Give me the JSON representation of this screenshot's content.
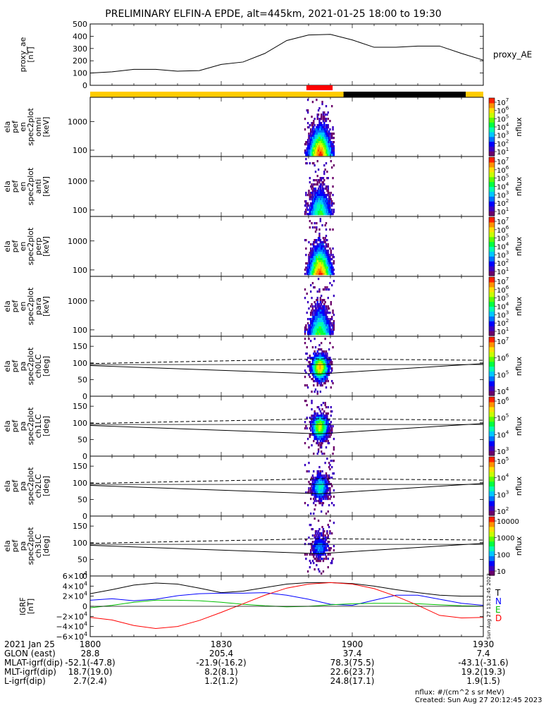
{
  "title": "PRELIMINARY ELFIN-A EPDE, alt=445km, 2021-01-25 18:00 to 19:30",
  "colors": {
    "spec_scale": [
      "#6b006b",
      "#3a00c0",
      "#0000ff",
      "#0070ff",
      "#00c8ff",
      "#00ffb0",
      "#00ff40",
      "#60ff00",
      "#c8ff00",
      "#ffe000",
      "#ff9000",
      "#ff2000"
    ],
    "state_orange": "#ffcc00",
    "state_black": "#000000",
    "marker_red": "#ff0000",
    "igrf_T": "#000000",
    "igrf_N": "#0000ff",
    "igrf_E": "#00c000",
    "igrf_D": "#ff0000"
  },
  "chart_data": [
    {
      "type": "line",
      "panel": "proxy_ae",
      "ylabel": [
        "proxy_ae",
        "[nT]"
      ],
      "right_label": "proxy_AE",
      "ylim": [
        0,
        500
      ],
      "yticks": [
        "500",
        "400",
        "300",
        "200",
        "100",
        "0"
      ],
      "x_minutes": [
        0,
        5,
        10,
        15,
        20,
        25,
        30,
        35,
        40,
        45,
        50,
        55,
        60,
        65,
        70,
        75,
        80,
        85,
        90
      ],
      "values": [
        100,
        110,
        130,
        130,
        115,
        120,
        170,
        190,
        260,
        365,
        410,
        415,
        370,
        310,
        310,
        320,
        320,
        260,
        205
      ]
    },
    {
      "type": "bar",
      "panel": "state_bar",
      "segments": [
        {
          "start_min": 0,
          "end_min": 58,
          "state": "orange"
        },
        {
          "start_min": 58,
          "end_min": 86,
          "state": "black"
        },
        {
          "start_min": 86,
          "end_min": 90,
          "state": "orange"
        }
      ],
      "marker": {
        "start_min": 49.5,
        "end_min": 55.5
      }
    },
    {
      "type": "heatmap",
      "panel": "omni",
      "ylabel": [
        "ela",
        "pef",
        "en",
        "spec2plot",
        "omni",
        "[keV]"
      ],
      "yscale": "log",
      "ylim": [
        60,
        7000
      ],
      "yticks": [
        "1000",
        "100"
      ],
      "clabel": "nflux",
      "cticks": [
        "10^7",
        "10^6",
        "10^5",
        "10^4",
        "10^3",
        "10^2",
        "10^1"
      ],
      "peak_time_min": 52.5,
      "peak_max": 0.95
    },
    {
      "type": "heatmap",
      "panel": "anti",
      "ylabel": [
        "ela",
        "pef",
        "en",
        "spec2plot",
        "anti",
        "[keV]"
      ],
      "yscale": "log",
      "ylim": [
        60,
        7000
      ],
      "yticks": [
        "1000",
        "100"
      ],
      "clabel": "nflux",
      "cticks": [
        "10^7",
        "10^6",
        "10^5",
        "10^4",
        "10^3",
        "10^2",
        "10^1"
      ],
      "peak_time_min": 52.5,
      "peak_max": 0.55
    },
    {
      "type": "heatmap",
      "panel": "perp",
      "ylabel": [
        "ela",
        "pef",
        "en",
        "spec2plot",
        "perp",
        "[keV]"
      ],
      "yscale": "log",
      "ylim": [
        60,
        7000
      ],
      "yticks": [
        "1000",
        "100"
      ],
      "clabel": "nflux",
      "cticks": [
        "10^7",
        "10^6",
        "10^5",
        "10^4",
        "10^3",
        "10^2",
        "10^1"
      ],
      "peak_time_min": 52.5,
      "peak_max": 0.95
    },
    {
      "type": "heatmap",
      "panel": "para",
      "ylabel": [
        "ela",
        "pef",
        "en",
        "spec2plot",
        "para",
        "[keV]"
      ],
      "yscale": "log",
      "ylim": [
        60,
        7000
      ],
      "yticks": [
        "1000",
        "100"
      ],
      "clabel": "nflux",
      "cticks": [
        "10^7",
        "10^6",
        "10^5",
        "10^4",
        "10^3",
        "10^2",
        "10^1"
      ],
      "peak_time_min": 52.5,
      "peak_max": 0.6
    },
    {
      "type": "heatmap",
      "panel": "ch0LC",
      "ylabel": [
        "ela",
        "pef",
        "pa",
        "spec2plot",
        "ch0LC",
        "[deg]"
      ],
      "ylim": [
        0,
        180
      ],
      "yticks": [
        "150",
        "100",
        "50",
        "0"
      ],
      "clabel": "nflux",
      "cticks": [
        "10^7",
        "10^6",
        "10^5",
        "10^4"
      ],
      "peak_time_min": 52.5,
      "peak_max": 0.85
    },
    {
      "type": "heatmap",
      "panel": "ch1LC",
      "ylabel": [
        "ela",
        "pef",
        "pa",
        "spec2plot",
        "ch1LC",
        "[deg]"
      ],
      "ylim": [
        0,
        180
      ],
      "yticks": [
        "150",
        "100",
        "50",
        "0"
      ],
      "clabel": "nflux",
      "cticks": [
        "10^6",
        "10^5",
        "10^4",
        "10^3"
      ],
      "peak_time_min": 52.5,
      "peak_max": 0.7
    },
    {
      "type": "heatmap",
      "panel": "ch2LC",
      "ylabel": [
        "ela",
        "pef",
        "pa",
        "spec2plot",
        "ch2LC",
        "[deg]"
      ],
      "ylim": [
        0,
        180
      ],
      "yticks": [
        "150",
        "100",
        "50",
        "0"
      ],
      "clabel": "nflux",
      "cticks": [
        "10^5",
        "10^4",
        "10^3",
        "10^2"
      ],
      "peak_time_min": 52.5,
      "peak_max": 0.45
    },
    {
      "type": "heatmap",
      "panel": "ch3LC",
      "ylabel": [
        "ela",
        "pef",
        "pa",
        "spec2plot",
        "ch3LC",
        "[deg]"
      ],
      "ylim": [
        0,
        180
      ],
      "yticks": [
        "150",
        "100",
        "50",
        "0"
      ],
      "clabel": "nflux",
      "cticks": [
        "10000",
        "1000",
        "100",
        "10"
      ],
      "peak_time_min": 52.5,
      "peak_max": 0.3
    },
    {
      "type": "line",
      "panel": "igrf",
      "ylabel": [
        "IGRF",
        "[nT]"
      ],
      "ylim": [
        -60000,
        60000
      ],
      "yticks": [
        "6×10^4",
        "4×10^4",
        "2×10^4",
        "0",
        "−2×10^4",
        "−4×10^4",
        "−6×10^4"
      ],
      "legend": [
        "T",
        "N",
        "E",
        "D"
      ],
      "x_minutes": [
        0,
        5,
        10,
        15,
        20,
        25,
        30,
        35,
        40,
        45,
        50,
        55,
        60,
        65,
        70,
        75,
        80,
        85,
        90
      ],
      "series": [
        {
          "name": "T",
          "values": [
            25000,
            33000,
            42000,
            46000,
            44000,
            36000,
            27000,
            30000,
            37000,
            44000,
            47000,
            47000,
            45000,
            40000,
            33000,
            27000,
            22000,
            20000,
            20000
          ]
        },
        {
          "name": "N",
          "values": [
            12000,
            15000,
            11000,
            14000,
            21000,
            25000,
            26000,
            26000,
            27000,
            22000,
            14000,
            4000,
            2000,
            12000,
            22000,
            22000,
            14000,
            6000,
            2000
          ]
        },
        {
          "name": "E",
          "values": [
            -3000,
            2000,
            8000,
            12000,
            12000,
            11000,
            8000,
            4000,
            1000,
            -1000,
            0,
            3000,
            5000,
            6000,
            6000,
            5000,
            3000,
            1000,
            0
          ]
        },
        {
          "name": "D",
          "values": [
            -22000,
            -27000,
            -38000,
            -44000,
            -40000,
            -28000,
            -12000,
            5000,
            22000,
            36000,
            44000,
            47000,
            44000,
            35000,
            20000,
            2000,
            -18000,
            -23000,
            -22000
          ]
        }
      ]
    }
  ],
  "time_axis": {
    "date_label": "2021 Jan 25",
    "ticks": [
      "1800",
      "1830",
      "1900",
      "1930"
    ],
    "tick_minutes": [
      0,
      30,
      60,
      90
    ]
  },
  "ephemeris": [
    {
      "label": "GLON (east)",
      "values": [
        "28.8",
        "205.4",
        "37.4",
        "7.4"
      ]
    },
    {
      "label": "MLAT-igrf(dip)",
      "values": [
        "-52.1(-47.8)",
        "-21.9(-16.2)",
        "78.3(75.5)",
        "-43.1(-31.6)"
      ]
    },
    {
      "label": "MLT-igrf(dip)",
      "values": [
        "18.7(19.0)",
        "8.2(8.1)",
        "22.6(23.7)",
        "19.2(19.3)"
      ]
    },
    {
      "label": "L-igrf(dip)",
      "values": [
        "2.7(2.4)",
        "1.2(1.2)",
        "24.8(17.1)",
        "1.9(1.5)"
      ]
    }
  ],
  "footer": {
    "units": "nflux: #/(cm^2 s sr MeV)",
    "created": "Created: Sun Aug 27 20:12:45 2023",
    "side_stamp": "Sun Aug 27 13:12:45 2023"
  }
}
